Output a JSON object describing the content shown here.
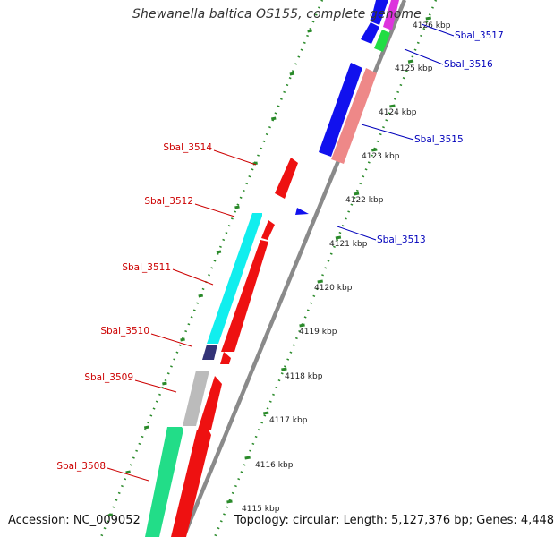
{
  "title": "Shewanella baltica OS155, complete genome",
  "footer": {
    "accession": "Accession: NC_009052",
    "summary": "Topology: circular; Length: 5,127,376 bp; Genes: 4,448"
  },
  "colors": {
    "backbone": "#8a8a8a",
    "tick_dots": "#2a8a2a",
    "forward_label": "#0000bb",
    "reverse_label": "#cc0000"
  },
  "kbp_labels": [
    "4126 kbp",
    "4125 kbp",
    "4124 kbp",
    "4123 kbp",
    "4122 kbp",
    "4121 kbp",
    "4120 kbp",
    "4119 kbp",
    "4118 kbp",
    "4117 kbp",
    "4116 kbp",
    "4115 kbp"
  ],
  "gene_labels": [
    {
      "name": "Sbal_3517",
      "strand": "forward"
    },
    {
      "name": "Sbal_3516",
      "strand": "forward"
    },
    {
      "name": "Sbal_3515",
      "strand": "forward"
    },
    {
      "name": "Sbal_3513",
      "strand": "forward"
    },
    {
      "name": "Sbal_3514",
      "strand": "reverse"
    },
    {
      "name": "Sbal_3512",
      "strand": "reverse"
    },
    {
      "name": "Sbal_3511",
      "strand": "reverse"
    },
    {
      "name": "Sbal_3510",
      "strand": "reverse"
    },
    {
      "name": "Sbal_3509",
      "strand": "reverse"
    },
    {
      "name": "Sbal_3508",
      "strand": "reverse"
    }
  ]
}
